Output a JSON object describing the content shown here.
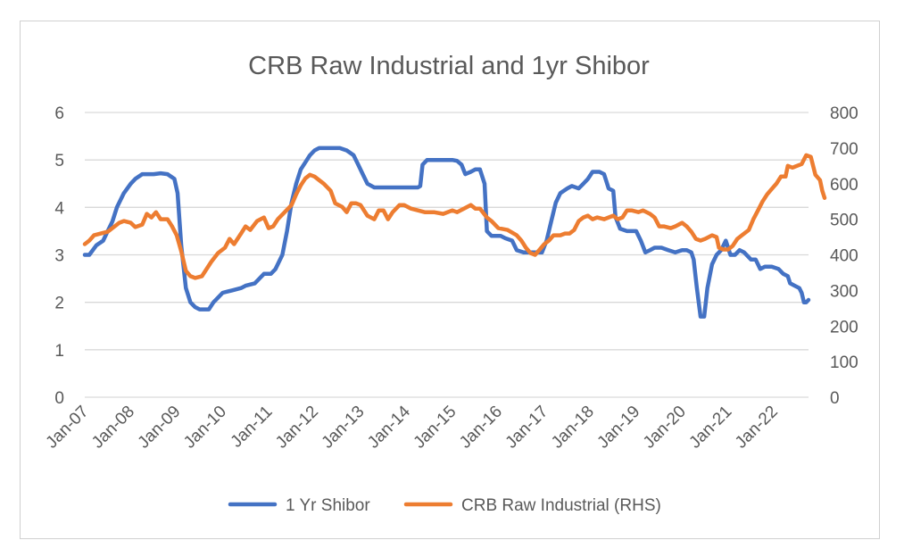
{
  "chart_data": {
    "type": "line",
    "title": "CRB Raw Industrial and 1yr Shibor",
    "xlabel": "",
    "ylabel": "",
    "x_tick_labels": [
      "Jan-07",
      "Jan-08",
      "Jan-09",
      "Jan-10",
      "Jan-11",
      "Jan-12",
      "Jan-13",
      "Jan-14",
      "Jan-15",
      "Jan-16",
      "Jan-17",
      "Jan-18",
      "Jan-19",
      "Jan-20",
      "Jan-21",
      "Jan-22"
    ],
    "y_left": {
      "ticks": [
        "0",
        "1",
        "2",
        "3",
        "4",
        "5",
        "6"
      ],
      "ylim": [
        0,
        6
      ]
    },
    "y_right": {
      "ticks": [
        "0",
        "100",
        "200",
        "300",
        "400",
        "500",
        "600",
        "700",
        "800"
      ],
      "ylim": [
        0,
        800
      ]
    },
    "x_range": [
      2007.0,
      2022.75
    ],
    "grid": "horizontal",
    "legend_position": "bottom",
    "series": [
      {
        "name": "1 Yr Shibor",
        "axis": "left",
        "color": "#4472C4",
        "points": [
          [
            2007.0,
            3.0
          ],
          [
            2007.1,
            3.0
          ],
          [
            2007.25,
            3.2
          ],
          [
            2007.4,
            3.3
          ],
          [
            2007.5,
            3.5
          ],
          [
            2007.6,
            3.7
          ],
          [
            2007.7,
            4.0
          ],
          [
            2007.85,
            4.3
          ],
          [
            2008.0,
            4.5
          ],
          [
            2008.1,
            4.6
          ],
          [
            2008.25,
            4.7
          ],
          [
            2008.5,
            4.7
          ],
          [
            2008.65,
            4.72
          ],
          [
            2008.8,
            4.7
          ],
          [
            2008.95,
            4.6
          ],
          [
            2009.02,
            4.3
          ],
          [
            2009.1,
            3.2
          ],
          [
            2009.2,
            2.3
          ],
          [
            2009.3,
            2.0
          ],
          [
            2009.4,
            1.9
          ],
          [
            2009.5,
            1.85
          ],
          [
            2009.7,
            1.85
          ],
          [
            2009.8,
            2.0
          ],
          [
            2009.9,
            2.1
          ],
          [
            2010.0,
            2.2
          ],
          [
            2010.2,
            2.25
          ],
          [
            2010.4,
            2.3
          ],
          [
            2010.5,
            2.35
          ],
          [
            2010.7,
            2.4
          ],
          [
            2010.8,
            2.5
          ],
          [
            2010.9,
            2.6
          ],
          [
            2011.05,
            2.6
          ],
          [
            2011.15,
            2.7
          ],
          [
            2011.3,
            3.0
          ],
          [
            2011.4,
            3.5
          ],
          [
            2011.5,
            4.1
          ],
          [
            2011.6,
            4.5
          ],
          [
            2011.7,
            4.8
          ],
          [
            2011.8,
            4.95
          ],
          [
            2011.9,
            5.1
          ],
          [
            2012.0,
            5.2
          ],
          [
            2012.1,
            5.25
          ],
          [
            2012.55,
            5.25
          ],
          [
            2012.7,
            5.2
          ],
          [
            2012.85,
            5.1
          ],
          [
            2012.95,
            4.9
          ],
          [
            2013.05,
            4.7
          ],
          [
            2013.15,
            4.5
          ],
          [
            2013.3,
            4.42
          ],
          [
            2014.25,
            4.42
          ],
          [
            2014.3,
            4.45
          ],
          [
            2014.35,
            4.9
          ],
          [
            2014.45,
            5.0
          ],
          [
            2015.0,
            5.0
          ],
          [
            2015.1,
            4.98
          ],
          [
            2015.2,
            4.9
          ],
          [
            2015.28,
            4.7
          ],
          [
            2015.4,
            4.75
          ],
          [
            2015.5,
            4.8
          ],
          [
            2015.6,
            4.8
          ],
          [
            2015.7,
            4.5
          ],
          [
            2015.75,
            3.5
          ],
          [
            2015.85,
            3.4
          ],
          [
            2016.05,
            3.4
          ],
          [
            2016.15,
            3.35
          ],
          [
            2016.3,
            3.3
          ],
          [
            2016.4,
            3.1
          ],
          [
            2016.55,
            3.05
          ],
          [
            2016.7,
            3.05
          ],
          [
            2016.85,
            3.05
          ],
          [
            2016.95,
            3.05
          ],
          [
            2017.05,
            3.3
          ],
          [
            2017.15,
            3.7
          ],
          [
            2017.25,
            4.1
          ],
          [
            2017.35,
            4.3
          ],
          [
            2017.5,
            4.4
          ],
          [
            2017.6,
            4.45
          ],
          [
            2017.75,
            4.4
          ],
          [
            2017.85,
            4.5
          ],
          [
            2017.95,
            4.6
          ],
          [
            2018.05,
            4.75
          ],
          [
            2018.2,
            4.75
          ],
          [
            2018.3,
            4.7
          ],
          [
            2018.4,
            4.4
          ],
          [
            2018.5,
            4.35
          ],
          [
            2018.55,
            3.8
          ],
          [
            2018.65,
            3.55
          ],
          [
            2018.8,
            3.5
          ],
          [
            2019.0,
            3.5
          ],
          [
            2019.1,
            3.3
          ],
          [
            2019.2,
            3.05
          ],
          [
            2019.3,
            3.1
          ],
          [
            2019.4,
            3.15
          ],
          [
            2019.55,
            3.15
          ],
          [
            2019.7,
            3.1
          ],
          [
            2019.85,
            3.05
          ],
          [
            2020.0,
            3.1
          ],
          [
            2020.1,
            3.1
          ],
          [
            2020.2,
            3.05
          ],
          [
            2020.25,
            2.9
          ],
          [
            2020.32,
            2.3
          ],
          [
            2020.4,
            1.7
          ],
          [
            2020.48,
            1.7
          ],
          [
            2020.55,
            2.3
          ],
          [
            2020.65,
            2.8
          ],
          [
            2020.75,
            3.0
          ],
          [
            2020.85,
            3.1
          ],
          [
            2020.95,
            3.3
          ],
          [
            2021.05,
            3.0
          ],
          [
            2021.15,
            3.0
          ],
          [
            2021.25,
            3.1
          ],
          [
            2021.35,
            3.05
          ],
          [
            2021.5,
            2.9
          ],
          [
            2021.6,
            2.9
          ],
          [
            2021.7,
            2.7
          ],
          [
            2021.8,
            2.75
          ],
          [
            2021.95,
            2.75
          ],
          [
            2022.1,
            2.7
          ],
          [
            2022.2,
            2.6
          ],
          [
            2022.3,
            2.55
          ],
          [
            2022.35,
            2.4
          ],
          [
            2022.45,
            2.35
          ],
          [
            2022.55,
            2.3
          ],
          [
            2022.6,
            2.2
          ],
          [
            2022.65,
            2.0
          ],
          [
            2022.7,
            2.0
          ],
          [
            2022.75,
            2.05
          ]
        ]
      },
      {
        "name": "CRB Raw Industrial (RHS)",
        "axis": "right",
        "color": "#ED7D31",
        "points": [
          [
            2007.0,
            430
          ],
          [
            2007.1,
            440
          ],
          [
            2007.2,
            455
          ],
          [
            2007.35,
            460
          ],
          [
            2007.5,
            465
          ],
          [
            2007.6,
            475
          ],
          [
            2007.75,
            490
          ],
          [
            2007.85,
            495
          ],
          [
            2008.0,
            490
          ],
          [
            2008.1,
            478
          ],
          [
            2008.25,
            485
          ],
          [
            2008.35,
            515
          ],
          [
            2008.45,
            505
          ],
          [
            2008.55,
            520
          ],
          [
            2008.65,
            500
          ],
          [
            2008.8,
            500
          ],
          [
            2008.9,
            480
          ],
          [
            2009.0,
            455
          ],
          [
            2009.1,
            410
          ],
          [
            2009.2,
            355
          ],
          [
            2009.3,
            340
          ],
          [
            2009.4,
            335
          ],
          [
            2009.55,
            340
          ],
          [
            2009.65,
            360
          ],
          [
            2009.75,
            380
          ],
          [
            2009.9,
            405
          ],
          [
            2010.05,
            420
          ],
          [
            2010.15,
            445
          ],
          [
            2010.25,
            430
          ],
          [
            2010.4,
            460
          ],
          [
            2010.5,
            480
          ],
          [
            2010.6,
            470
          ],
          [
            2010.75,
            495
          ],
          [
            2010.9,
            505
          ],
          [
            2011.0,
            475
          ],
          [
            2011.1,
            480
          ],
          [
            2011.2,
            500
          ],
          [
            2011.35,
            520
          ],
          [
            2011.5,
            540
          ],
          [
            2011.6,
            570
          ],
          [
            2011.7,
            595
          ],
          [
            2011.8,
            615
          ],
          [
            2011.9,
            625
          ],
          [
            2012.0,
            620
          ],
          [
            2012.1,
            610
          ],
          [
            2012.2,
            600
          ],
          [
            2012.35,
            580
          ],
          [
            2012.45,
            545
          ],
          [
            2012.6,
            535
          ],
          [
            2012.7,
            520
          ],
          [
            2012.8,
            545
          ],
          [
            2012.9,
            545
          ],
          [
            2013.0,
            540
          ],
          [
            2013.15,
            510
          ],
          [
            2013.3,
            500
          ],
          [
            2013.4,
            525
          ],
          [
            2013.5,
            525
          ],
          [
            2013.6,
            500
          ],
          [
            2013.7,
            520
          ],
          [
            2013.85,
            540
          ],
          [
            2013.95,
            540
          ],
          [
            2014.1,
            530
          ],
          [
            2014.25,
            525
          ],
          [
            2014.4,
            520
          ],
          [
            2014.6,
            520
          ],
          [
            2014.8,
            515
          ],
          [
            2015.0,
            525
          ],
          [
            2015.1,
            520
          ],
          [
            2015.25,
            530
          ],
          [
            2015.4,
            540
          ],
          [
            2015.5,
            530
          ],
          [
            2015.6,
            530
          ],
          [
            2015.75,
            505
          ],
          [
            2015.85,
            495
          ],
          [
            2016.0,
            475
          ],
          [
            2016.2,
            470
          ],
          [
            2016.4,
            455
          ],
          [
            2016.5,
            440
          ],
          [
            2016.6,
            420
          ],
          [
            2016.7,
            405
          ],
          [
            2016.8,
            400
          ],
          [
            2016.9,
            415
          ],
          [
            2017.0,
            430
          ],
          [
            2017.1,
            440
          ],
          [
            2017.2,
            455
          ],
          [
            2017.35,
            455
          ],
          [
            2017.45,
            460
          ],
          [
            2017.55,
            460
          ],
          [
            2017.65,
            470
          ],
          [
            2017.75,
            495
          ],
          [
            2017.85,
            505
          ],
          [
            2017.95,
            510
          ],
          [
            2018.05,
            500
          ],
          [
            2018.15,
            505
          ],
          [
            2018.3,
            500
          ],
          [
            2018.4,
            505
          ],
          [
            2018.5,
            510
          ],
          [
            2018.6,
            500
          ],
          [
            2018.7,
            505
          ],
          [
            2018.8,
            525
          ],
          [
            2018.9,
            525
          ],
          [
            2019.05,
            520
          ],
          [
            2019.15,
            525
          ],
          [
            2019.3,
            515
          ],
          [
            2019.4,
            505
          ],
          [
            2019.5,
            480
          ],
          [
            2019.6,
            480
          ],
          [
            2019.75,
            475
          ],
          [
            2019.85,
            480
          ],
          [
            2020.0,
            490
          ],
          [
            2020.1,
            480
          ],
          [
            2020.2,
            465
          ],
          [
            2020.3,
            445
          ],
          [
            2020.4,
            440
          ],
          [
            2020.5,
            445
          ],
          [
            2020.65,
            455
          ],
          [
            2020.75,
            450
          ],
          [
            2020.8,
            420
          ],
          [
            2020.9,
            415
          ],
          [
            2021.0,
            415
          ],
          [
            2021.1,
            425
          ],
          [
            2021.2,
            445
          ],
          [
            2021.3,
            455
          ],
          [
            2021.45,
            470
          ],
          [
            2021.55,
            500
          ],
          [
            2021.65,
            525
          ],
          [
            2021.75,
            550
          ],
          [
            2021.85,
            570
          ],
          [
            2021.95,
            585
          ],
          [
            2022.05,
            600
          ],
          [
            2022.15,
            620
          ],
          [
            2022.25,
            620
          ],
          [
            2022.3,
            650
          ],
          [
            2022.4,
            645
          ],
          [
            2022.5,
            650
          ],
          [
            2022.6,
            655
          ],
          [
            2022.7,
            680
          ],
          [
            2022.8,
            675
          ],
          [
            2022.9,
            625
          ],
          [
            2023.0,
            610
          ],
          [
            2023.05,
            580
          ],
          [
            2023.1,
            560
          ]
        ]
      }
    ]
  }
}
